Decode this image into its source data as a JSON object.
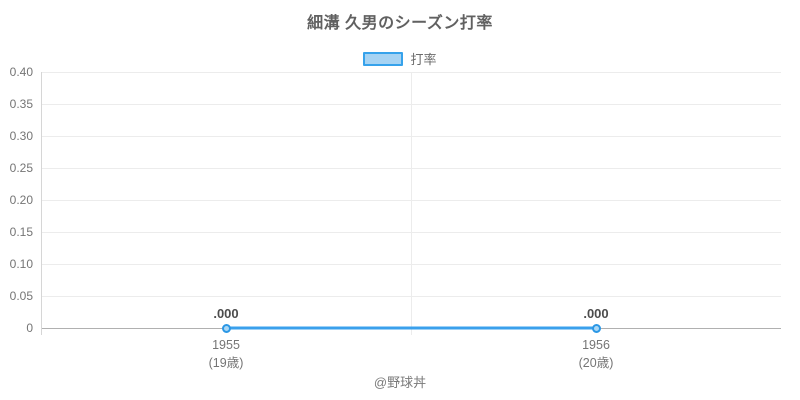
{
  "title": "細溝 久男のシーズン打率",
  "legend": {
    "label": "打率"
  },
  "footer": "@野球丼",
  "colors": {
    "line": "#3aa0ec",
    "point_border": "#2b97e5",
    "point_fill": "#a9d7f5",
    "legend_fill": "#a6d3f3",
    "legend_border": "#36a2eb",
    "grid": "#ececec",
    "zero_line": "#b0b0b0",
    "axis_line": "#d6d6d6",
    "title_text": "#616161",
    "tick_text": "#757575",
    "value_text": "#4d4d4d"
  },
  "chart_data": {
    "type": "line",
    "title": "細溝 久男のシーズン打率",
    "series": [
      {
        "name": "打率",
        "values": [
          0.0,
          0.0
        ],
        "point_labels": [
          ".000",
          ".000"
        ]
      }
    ],
    "categories": [
      {
        "year": "1955",
        "age": "(19歳)"
      },
      {
        "year": "1956",
        "age": "(20歳)"
      }
    ],
    "xlabel": "",
    "ylabel": "",
    "ylim": [
      0,
      0.4
    ],
    "ytick_labels": [
      "0.40",
      "0.35",
      "0.30",
      "0.25",
      "0.20",
      "0.15",
      "0.10",
      "0.05",
      "0"
    ],
    "ytick_values": [
      0.4,
      0.35,
      0.3,
      0.25,
      0.2,
      0.15,
      0.1,
      0.05,
      0
    ],
    "grid": true,
    "legend_position": "top",
    "annotations": [
      "@野球丼"
    ]
  }
}
